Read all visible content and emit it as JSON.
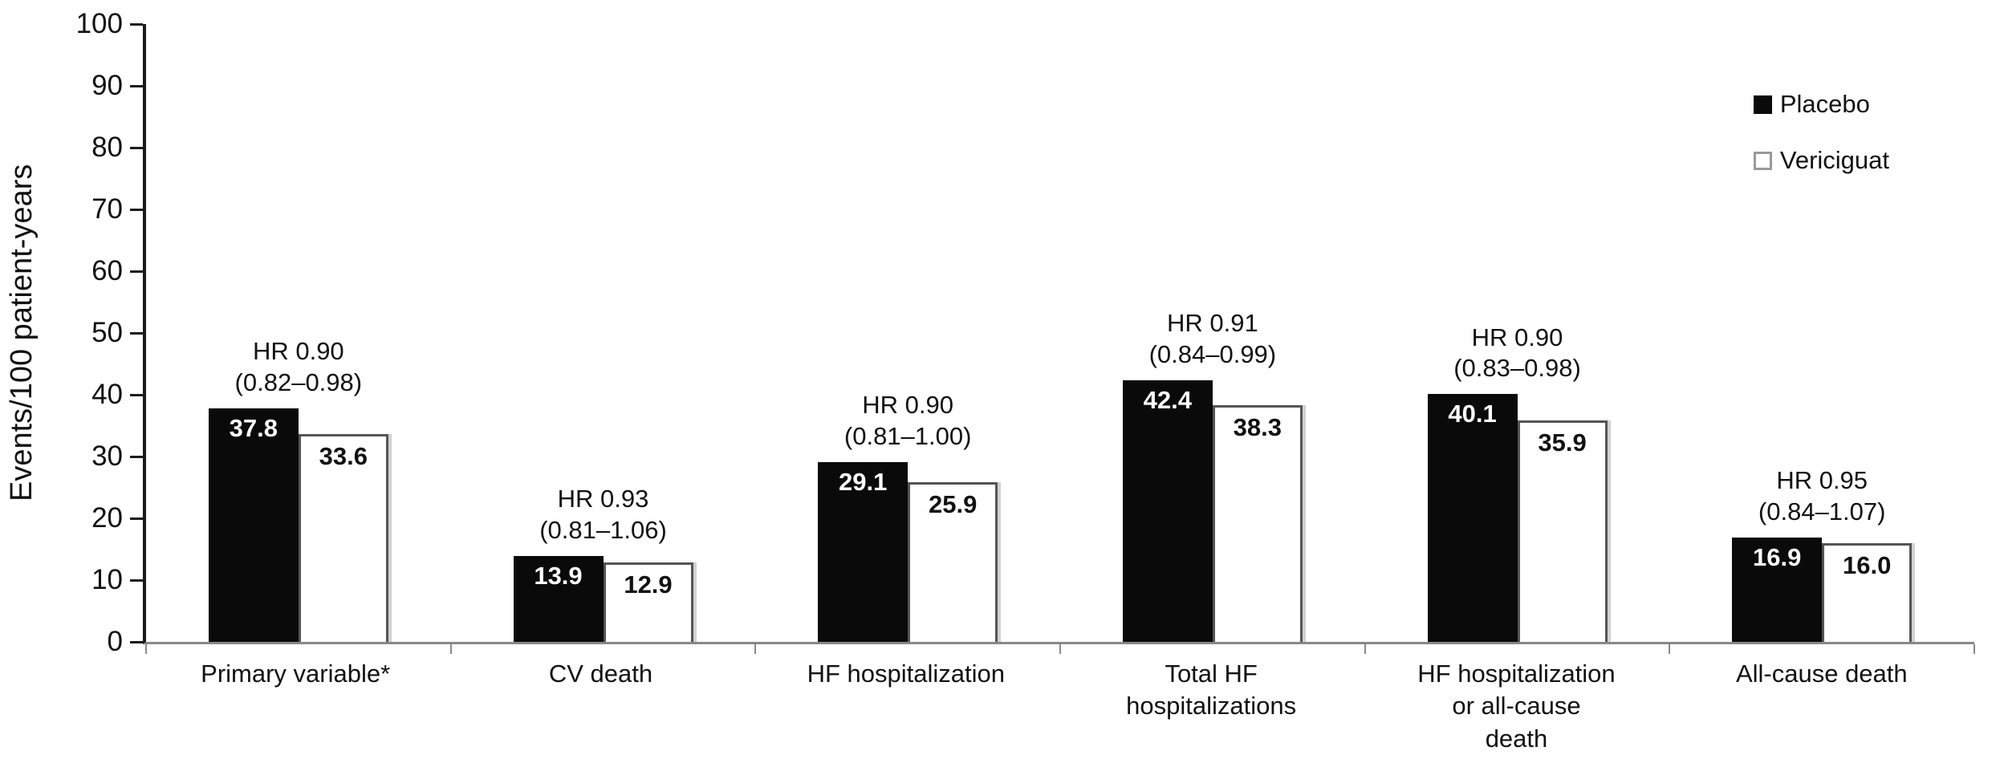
{
  "chart_data": {
    "type": "bar",
    "title": "",
    "xlabel": "",
    "ylabel": "Events/100 patient-years",
    "ylim": [
      0,
      100
    ],
    "ytick_step": 10,
    "grid": false,
    "legend_position": "upper right",
    "categories": [
      "Primary variable*",
      "CV death",
      "HF hospitalization",
      "Total HF\nhospitalizations",
      "HF hospitalization\nor all-cause\ndeath",
      "All-cause death"
    ],
    "series": [
      {
        "name": "Placebo",
        "color": "#0a0a0a",
        "values": [
          37.8,
          13.9,
          29.1,
          42.4,
          40.1,
          16.9
        ]
      },
      {
        "name": "Vericiguat",
        "color": "#ffffff",
        "values": [
          33.6,
          12.9,
          25.9,
          38.3,
          35.9,
          16.0
        ]
      }
    ],
    "annotations": [
      {
        "line1": "HR 0.90",
        "line2": "(0.82–0.98)"
      },
      {
        "line1": "HR 0.93",
        "line2": "(0.81–1.06)"
      },
      {
        "line1": "HR 0.90",
        "line2": "(0.81–1.00)"
      },
      {
        "line1": "HR 0.91",
        "line2": "(0.84–0.99)"
      },
      {
        "line1": "HR 0.90",
        "line2": "(0.83–0.98)"
      },
      {
        "line1": "HR 0.95",
        "line2": "(0.84–1.07)"
      }
    ]
  }
}
